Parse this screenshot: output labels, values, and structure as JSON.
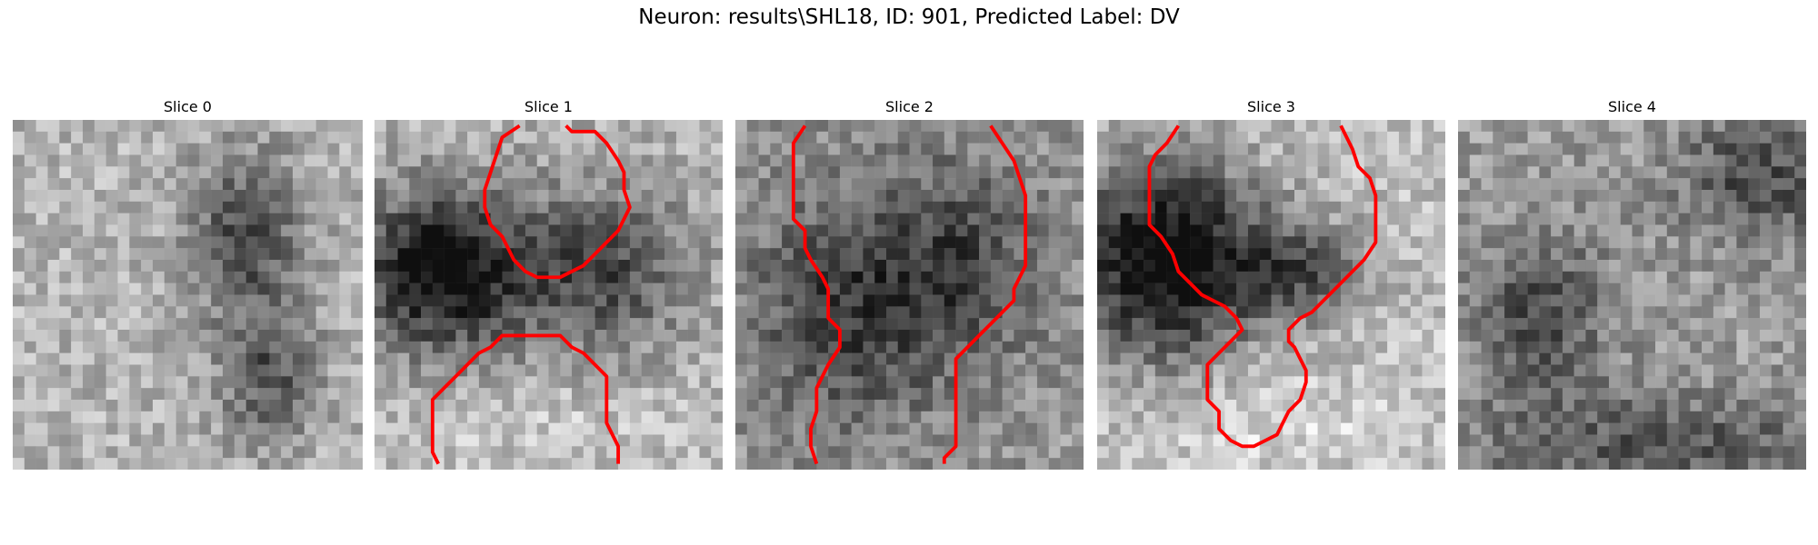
{
  "title": "Neuron: results\\SHL18, ID: 901, Predicted Label: DV",
  "panels": [
    {
      "title": "Slice 0"
    },
    {
      "title": "Slice 1"
    },
    {
      "title": "Slice 2"
    },
    {
      "title": "Slice 3"
    },
    {
      "title": "Slice 4"
    }
  ],
  "colors": {
    "contour": "#ff0000",
    "background": "#ffffff"
  }
}
